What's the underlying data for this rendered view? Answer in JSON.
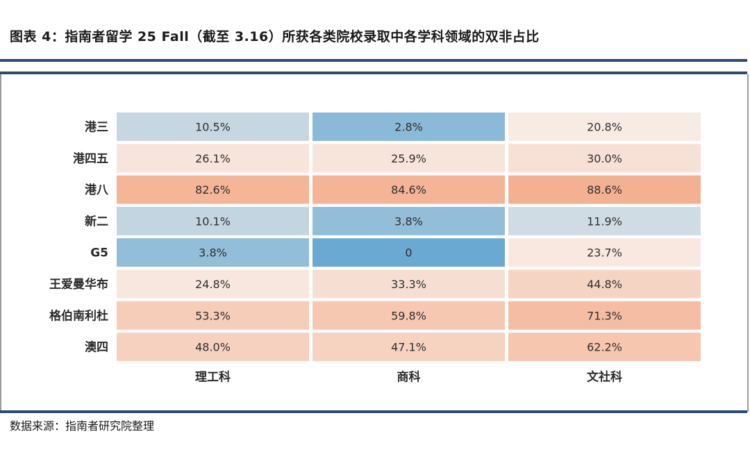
{
  "header": {
    "title": "图表 4：指南者留学 25 Fall（截至 3.16）所获各类院校录取中各学科领域的双非占比"
  },
  "footer": {
    "source": "数据来源：指南者研究院整理"
  },
  "colors": {
    "rule": "#2c4a72",
    "low": "#6aaad2",
    "mid": "#f8efea",
    "high": "#f4a985"
  },
  "chart_data": {
    "type": "heatmap",
    "rows": [
      "港三",
      "港四五",
      "港八",
      "新二",
      "G5",
      "王爱曼华布",
      "格伯南利杜",
      "澳四"
    ],
    "columns": [
      "理工科",
      "商科",
      "文社科"
    ],
    "values": [
      [
        10.5,
        2.8,
        20.8
      ],
      [
        26.1,
        25.9,
        30.0
      ],
      [
        82.6,
        84.6,
        88.6
      ],
      [
        10.1,
        3.8,
        11.9
      ],
      [
        3.8,
        0,
        23.7
      ],
      [
        24.8,
        33.3,
        44.8
      ],
      [
        53.3,
        59.8,
        71.3
      ],
      [
        48.0,
        47.1,
        62.2
      ]
    ],
    "labels": [
      [
        "10.5%",
        "2.8%",
        "20.8%"
      ],
      [
        "26.1%",
        "25.9%",
        "30.0%"
      ],
      [
        "82.6%",
        "84.6%",
        "88.6%"
      ],
      [
        "10.1%",
        "3.8%",
        "11.9%"
      ],
      [
        "3.8%",
        "0",
        "23.7%"
      ],
      [
        "24.8%",
        "33.3%",
        "44.8%"
      ],
      [
        "53.3%",
        "59.8%",
        "71.3%"
      ],
      [
        "48.0%",
        "47.1%",
        "62.2%"
      ]
    ],
    "unit": "%",
    "color_scale": {
      "min": 0,
      "mid": 18,
      "max": 100
    }
  }
}
